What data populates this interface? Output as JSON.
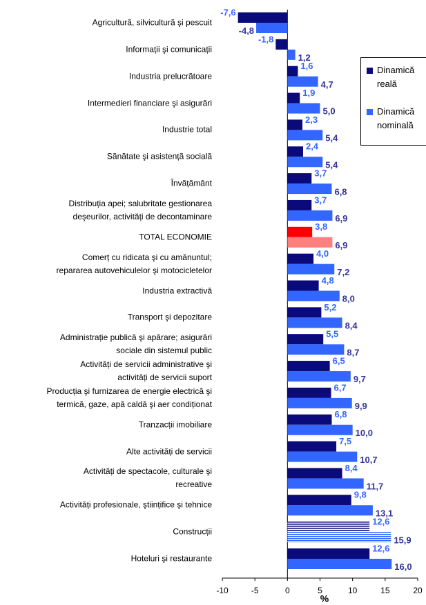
{
  "chart_data": {
    "type": "bar",
    "orientation": "horizontal",
    "categories": [
      "Agricultură, silvicultură şi pescuit",
      "Informații şi comunicații",
      "Industria prelucrătoare",
      "Intermedieri financiare şi asigurări",
      "Industrie total",
      "Sănătate şi asistență socială",
      "Învățământ",
      "Distribuția apei; salubritate gestionarea\ndeşeurilor, activități de decontaminare",
      "TOTAL ECONOMIE",
      "Comerț cu ridicata şi cu amănuntul;\nrepararea autovehiculelor şi motocicletelor",
      "Industria extractivă",
      "Transport şi depozitare",
      "Administrație publică şi apărare; asigurări\nsociale din sistemul public",
      "Activități de servicii administrative şi\nactivități de servicii suport",
      "Producția şi furnizarea de energie electrică şi\ntermică, gaze, apă caldă şi aer condiționat",
      "Tranzacții imobiliare",
      "Alte activități de servicii",
      "Activități de spectacole, culturale şi\nrecreative",
      "Activități profesionale, ştiințifice şi tehnice",
      "Construcții",
      "Hoteluri şi restaurante"
    ],
    "series": [
      {
        "name": "Dinamică reală",
        "color": "#0a0a7a",
        "label_color": "#3366ff",
        "highlight_color": "#ff0000",
        "values": [
          -7.6,
          -1.8,
          1.6,
          1.9,
          2.3,
          2.4,
          3.7,
          3.7,
          3.8,
          4.0,
          4.8,
          5.2,
          5.5,
          6.5,
          6.7,
          6.8,
          7.5,
          8.4,
          9.8,
          12.6,
          12.6
        ],
        "value_labels": [
          "-7,6",
          "-1,8",
          "1,6",
          "1,9",
          "2,3",
          "2,4",
          "3,7",
          "3,7",
          "3,8",
          "4,0",
          "4,8",
          "5,2",
          "5,5",
          "6,5",
          "6,7",
          "6,8",
          "7,5",
          "8,4",
          "9,8",
          "12,6",
          "12,6"
        ]
      },
      {
        "name": "Dinamică nominală",
        "color": "#3366ff",
        "label_color": "#333399",
        "highlight_color": "#ff7f7f",
        "values": [
          -4.8,
          1.2,
          4.7,
          5.0,
          5.4,
          5.4,
          6.8,
          6.9,
          6.9,
          7.2,
          8.0,
          8.4,
          8.7,
          9.7,
          9.9,
          10.0,
          10.7,
          11.7,
          13.1,
          15.9,
          16.0
        ],
        "value_labels": [
          "-4,8",
          "1,2",
          "4,7",
          "5,0",
          "5,4",
          "5,4",
          "6,8",
          "6,9",
          "6,9",
          "7,2",
          "8,0",
          "8,4",
          "8,7",
          "9,7",
          "9,9",
          "10,0",
          "10,7",
          "11,7",
          "13,1",
          "15,9",
          "16,0"
        ]
      }
    ],
    "highlight_category": "TOTAL ECONOMIE",
    "hatched_category": "Construcții",
    "xlim": [
      -10,
      20
    ],
    "xticks": [
      -10,
      -5,
      0,
      5,
      10,
      15,
      20
    ],
    "xlabel": "%",
    "grid": false,
    "legend": "right"
  }
}
